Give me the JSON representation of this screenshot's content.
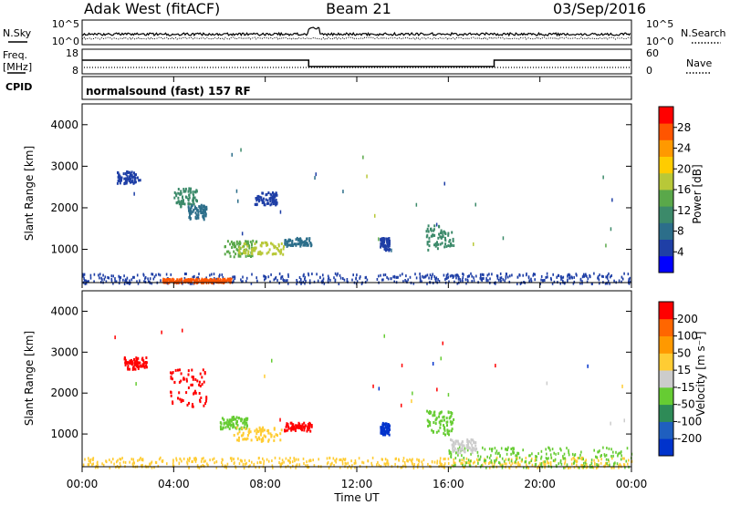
{
  "header": {
    "station": "Adak West (fitACF)",
    "beam": "Beam 21",
    "date": "03/Sep/2016"
  },
  "summary": {
    "nsky_label": "N.Sky",
    "nsky_ticks": [
      "10^5",
      "10^0"
    ],
    "nsearch_label": "N.Search",
    "nsearch_ticks": [
      "10^5",
      "10^0"
    ],
    "freq_label_line1": "Freq.",
    "freq_label_line2": "[MHz]",
    "freq_ticks": [
      "18",
      "8"
    ],
    "nave_label": "Nave",
    "nave_ticks": [
      "60",
      "0"
    ],
    "cpid_label": "CPID",
    "cpid_text": "normalsound (fast) 157 RF"
  },
  "chart_data": [
    {
      "type": "heatmap",
      "name": "power-panel",
      "ylabel": "Slant Range [km]",
      "yticks": [
        "4000",
        "3000",
        "2000",
        "1000"
      ],
      "ylim": [
        200,
        4500
      ],
      "xlim": [
        0,
        24
      ],
      "colorbar_label": "Power [dB]",
      "colorbar_ticks": [
        "28",
        "24",
        "20",
        "16",
        "12",
        "8",
        "4"
      ],
      "colorbar_colors": [
        "#0000ff",
        "#1f3fa6",
        "#2c6e8a",
        "#3c8a6a",
        "#5aa84a",
        "#b8c838",
        "#ffcc00",
        "#ff9900",
        "#ff5500",
        "#ff0000"
      ],
      "clusters": [
        {
          "t0": 4.0,
          "t1": 5.0,
          "r0": 2050,
          "r1": 2500,
          "color": "#3c8a6a"
        },
        {
          "t0": 4.6,
          "t1": 5.4,
          "r0": 1750,
          "r1": 2100,
          "color": "#2c6e8a"
        },
        {
          "t0": 6.2,
          "t1": 7.6,
          "r0": 850,
          "r1": 1250,
          "color": "#5aa84a"
        },
        {
          "t0": 6.8,
          "t1": 8.8,
          "r0": 900,
          "r1": 1200,
          "color": "#b8c838"
        },
        {
          "t0": 8.8,
          "t1": 10.0,
          "r0": 1100,
          "r1": 1300,
          "color": "#2c6e8a"
        },
        {
          "t0": 15.0,
          "t1": 16.2,
          "r0": 1000,
          "r1": 1600,
          "color": "#3c8a6a"
        },
        {
          "t0": 13.0,
          "t1": 13.4,
          "r0": 1000,
          "r1": 1300,
          "color": "#1f3fa6"
        },
        {
          "t0": 1.5,
          "t1": 2.5,
          "r0": 2600,
          "r1": 2900,
          "color": "#1f3fa6"
        },
        {
          "t0": 7.5,
          "t1": 8.5,
          "r0": 2100,
          "r1": 2400,
          "color": "#1f3fa6"
        }
      ],
      "ground_band": {
        "r0": 200,
        "r1": 450,
        "color": "#1f3fa6"
      },
      "hot_band": {
        "t0": 3.5,
        "t1": 6.5,
        "r0": 220,
        "r1": 320,
        "color": "#ff5500"
      }
    },
    {
      "type": "heatmap",
      "name": "velocity-panel",
      "ylabel": "Slant Range [km]",
      "yticks": [
        "4000",
        "3000",
        "2000",
        "1000"
      ],
      "ylim": [
        200,
        4500
      ],
      "xlim": [
        0,
        24
      ],
      "xlabel": "Time UT",
      "xticks": [
        "00:00",
        "04:00",
        "08:00",
        "12:00",
        "16:00",
        "20:00",
        "00:00"
      ],
      "colorbar_label": "Velocity [m s⁻¹]",
      "colorbar_ticks": [
        "200",
        "100",
        "50",
        "15",
        "-15",
        "-50",
        "-100",
        "-200"
      ],
      "colorbar_colors": [
        "#0033cc",
        "#1f5fbf",
        "#2e8b57",
        "#66cc33",
        "#cccccc",
        "#ffcc33",
        "#ff9900",
        "#ff6600",
        "#ff0000"
      ],
      "clusters": [
        {
          "t0": 1.8,
          "t1": 2.8,
          "r0": 2600,
          "r1": 2900,
          "color": "#ff0000"
        },
        {
          "t0": 3.8,
          "t1": 5.4,
          "r0": 1700,
          "r1": 2600,
          "color": "#ff0000"
        },
        {
          "t0": 6.0,
          "t1": 7.2,
          "r0": 1150,
          "r1": 1450,
          "color": "#66cc33"
        },
        {
          "t0": 6.6,
          "t1": 8.8,
          "r0": 850,
          "r1": 1200,
          "color": "#ffcc33"
        },
        {
          "t0": 8.8,
          "t1": 10.0,
          "r0": 1100,
          "r1": 1300,
          "color": "#ff0000"
        },
        {
          "t0": 13.0,
          "t1": 13.4,
          "r0": 1000,
          "r1": 1300,
          "color": "#0033cc"
        },
        {
          "t0": 15.0,
          "t1": 16.2,
          "r0": 1000,
          "r1": 1600,
          "color": "#66cc33"
        },
        {
          "t0": 16.0,
          "t1": 17.2,
          "r0": 550,
          "r1": 900,
          "color": "#cccccc"
        }
      ],
      "ground_band": {
        "r0": 200,
        "r1": 450,
        "color": "#ffcc33"
      },
      "late_band": {
        "t0": 16.0,
        "t1": 24.0,
        "r0": 200,
        "r1": 700,
        "color": "#66cc33"
      }
    }
  ]
}
